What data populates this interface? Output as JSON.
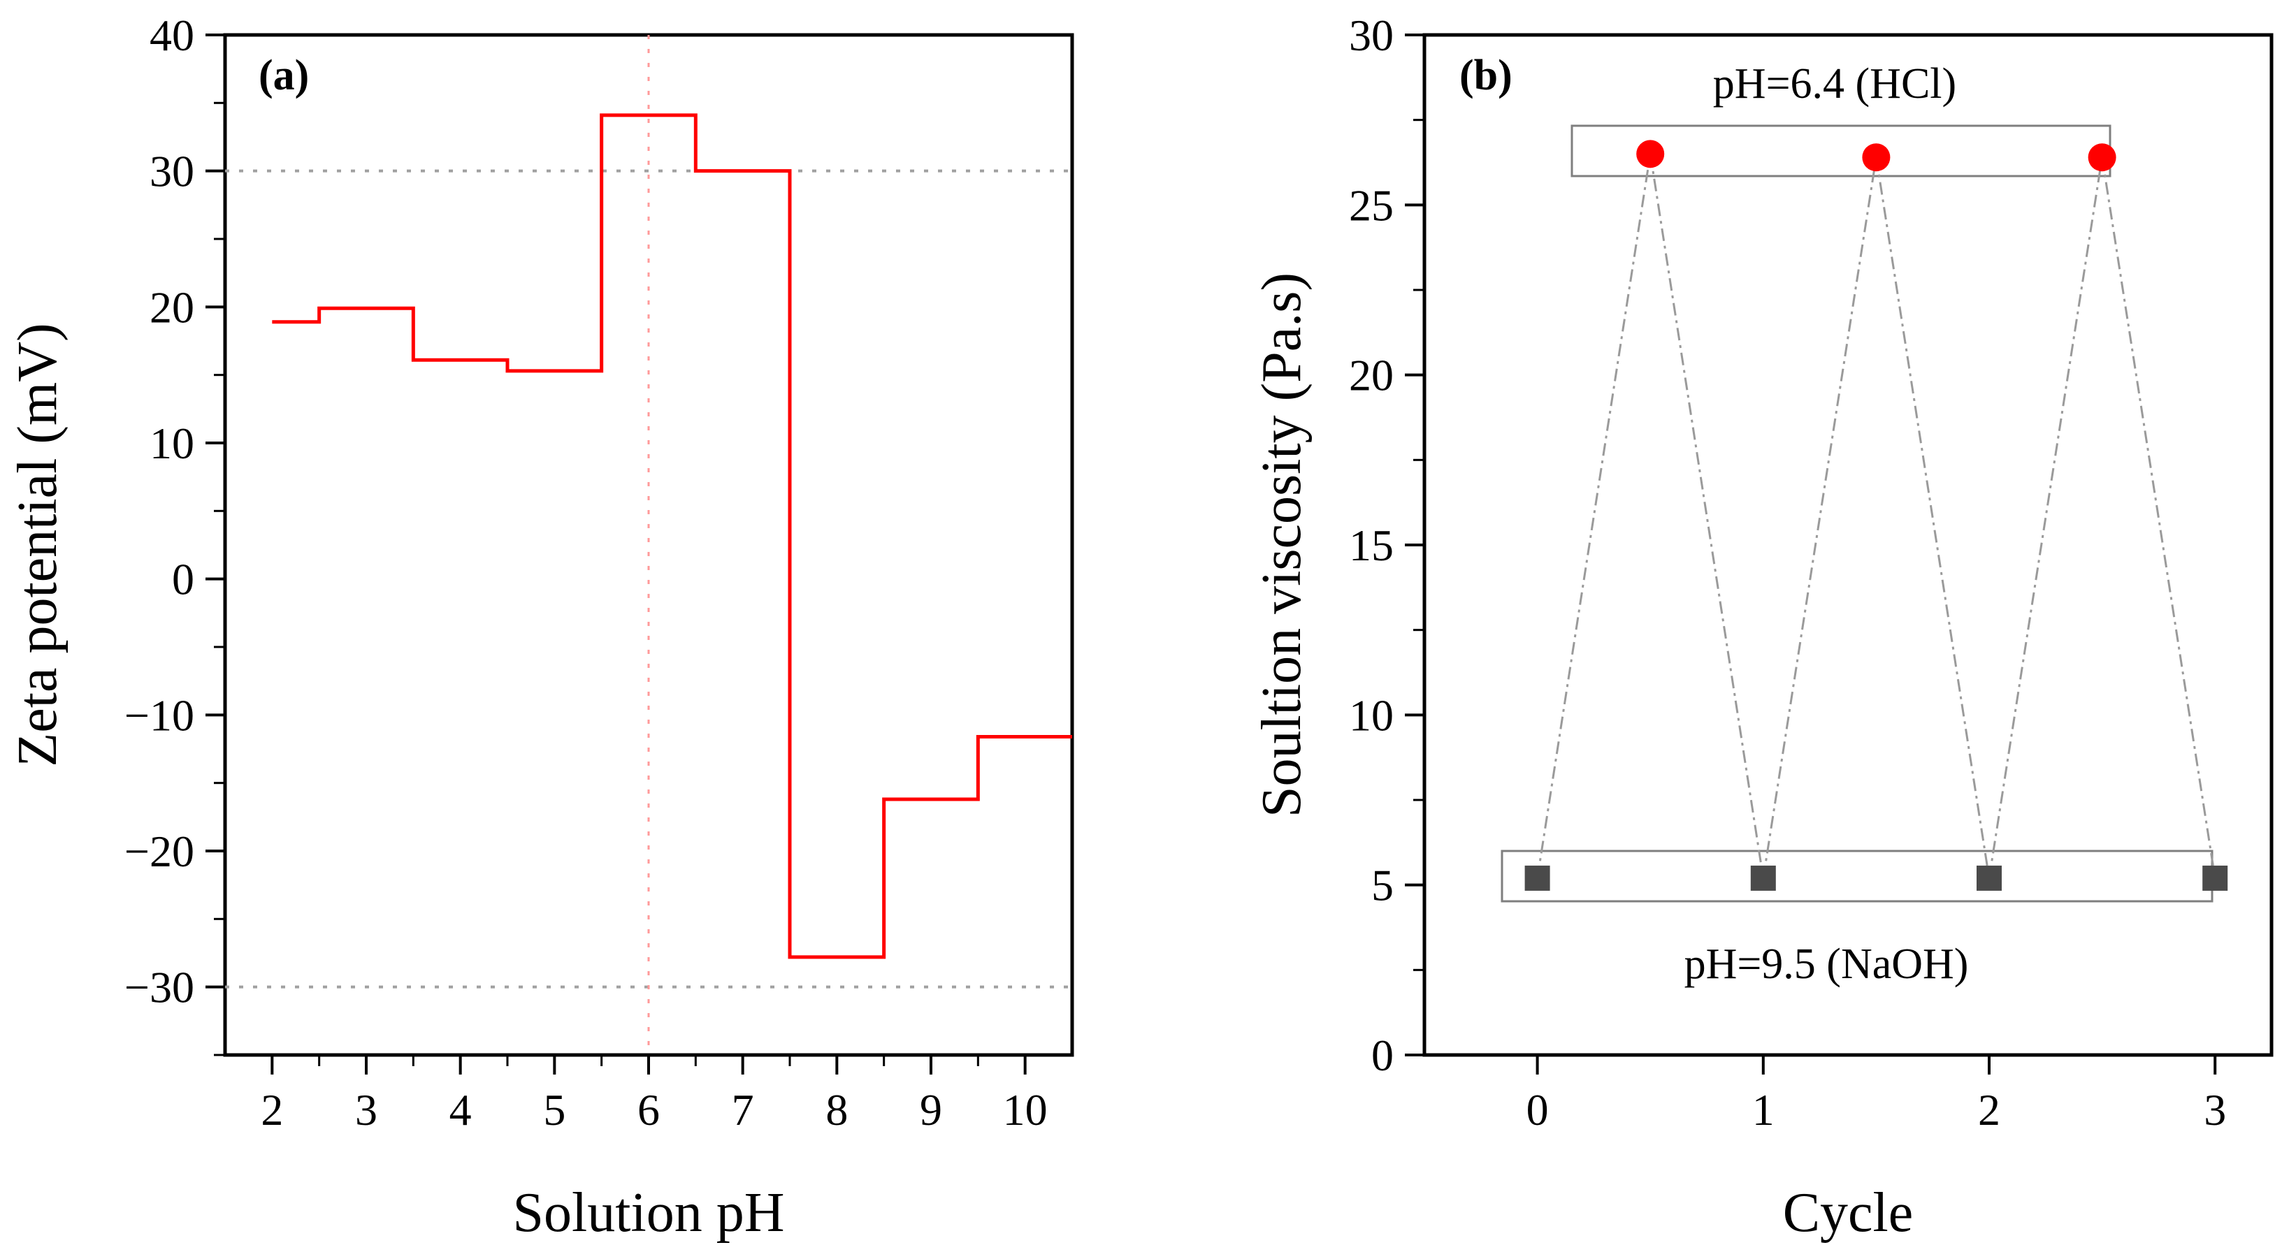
{
  "chart_data": [
    {
      "type": "step",
      "panel_label": "(a)",
      "xlabel": "Solution pH",
      "ylabel": "Zeta potential (mV)",
      "xlim": [
        1.5,
        10.5
      ],
      "ylim": [
        -35,
        40
      ],
      "xticks": [
        2,
        3,
        4,
        5,
        6,
        7,
        8,
        9,
        10
      ],
      "yticks": [
        -30,
        -20,
        -10,
        0,
        10,
        20,
        30,
        40
      ],
      "ytick_labels": [
        "−30",
        "−20",
        "−10",
        "0",
        "10",
        "20",
        "30",
        "40"
      ],
      "series": [
        {
          "name": "Zeta potential",
          "color": "#ff0000",
          "x": [
            2,
            3,
            4,
            5,
            6,
            7,
            8,
            9,
            10
          ],
          "y": [
            18.9,
            19.9,
            16.1,
            15.3,
            34.1,
            30.0,
            -27.8,
            -16.2,
            -11.6
          ]
        }
      ],
      "reference_lines": {
        "horizontal": [
          30,
          -30
        ],
        "vertical": [
          6
        ],
        "horizontal_color": "#a0a0a0",
        "vertical_color": "#ff9a9a"
      }
    },
    {
      "type": "scatter",
      "panel_label": "(b)",
      "xlabel": "Cycle",
      "ylabel": "Soultion viscosity (Pa.s)",
      "xlim": [
        -0.5,
        3.25
      ],
      "ylim": [
        0,
        30
      ],
      "xticks": [
        0,
        1,
        2,
        3
      ],
      "yticks": [
        0,
        5,
        10,
        15,
        20,
        25,
        30
      ],
      "series": [
        {
          "name": "pH=6.4 (HCl)",
          "marker": "circle",
          "color": "#ff0000",
          "x": [
            0.5,
            1.5,
            2.5
          ],
          "y": [
            26.5,
            26.4,
            26.4
          ]
        },
        {
          "name": "pH=9.5 (NaOH)",
          "marker": "square",
          "color": "#4a4a4a",
          "x": [
            0,
            1,
            2,
            3
          ],
          "y": [
            5.2,
            5.2,
            5.2,
            5.2
          ]
        }
      ],
      "zigzag_order": [
        [
          0,
          5.2
        ],
        [
          0.5,
          26.5
        ],
        [
          1,
          5.2
        ],
        [
          1.5,
          26.4
        ],
        [
          2,
          5.2
        ],
        [
          2.5,
          26.4
        ],
        [
          3,
          5.2
        ]
      ],
      "annotations": {
        "top": "pH=6.4 (HCl)",
        "bottom": "pH=9.5 (NaOH)"
      }
    }
  ]
}
